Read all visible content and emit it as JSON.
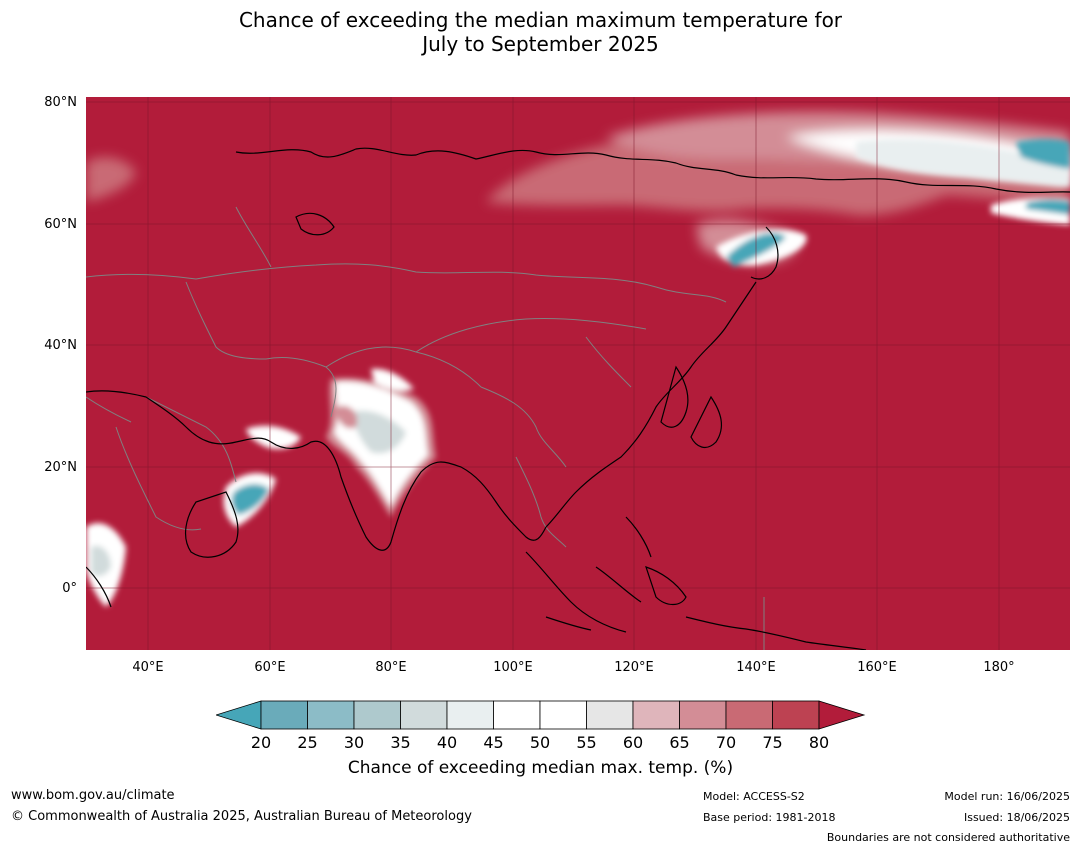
{
  "title_line1": "Chance of exceeding the median maximum temperature for",
  "title_line2": "July to September 2025",
  "lat_labels": [
    "80°N",
    "60°N",
    "40°N",
    "20°N",
    "0°"
  ],
  "lon_labels": [
    "40°E",
    "60°E",
    "80°E",
    "100°E",
    "120°E",
    "140°E",
    "160°E",
    "180°"
  ],
  "colorbar": {
    "ticks": [
      "20",
      "25",
      "30",
      "35",
      "40",
      "45",
      "50",
      "55",
      "60",
      "65",
      "70",
      "75",
      "80"
    ],
    "colors": [
      "#6aabba",
      "#8cbcc7",
      "#aec9cd",
      "#d1dbdc",
      "#e9eff0",
      "#ffffff",
      "#ffffff",
      "#e6e6e6",
      "#dfb5bb",
      "#d38d96",
      "#c96a74",
      "#bd4252"
    ],
    "under_color": "#46a6b8",
    "over_color": "#b21c3a",
    "label": "Chance of exceeding median max. temp. (%)"
  },
  "colors": {
    "dominant": "#b21c3a",
    "coast": "#000000",
    "borders": "#808080"
  },
  "footer": {
    "url": "www.bom.gov.au/climate",
    "copyright": "© Commonwealth of Australia 2025, Australian Bureau of Meteorology",
    "model": "Model: ACCESS-S2",
    "base_period": "Base period: 1981-2018",
    "model_run": "Model run: 16/06/2025",
    "issued": "Issued: 18/06/2025",
    "disclaimer": "Boundaries are not considered authoritative"
  }
}
